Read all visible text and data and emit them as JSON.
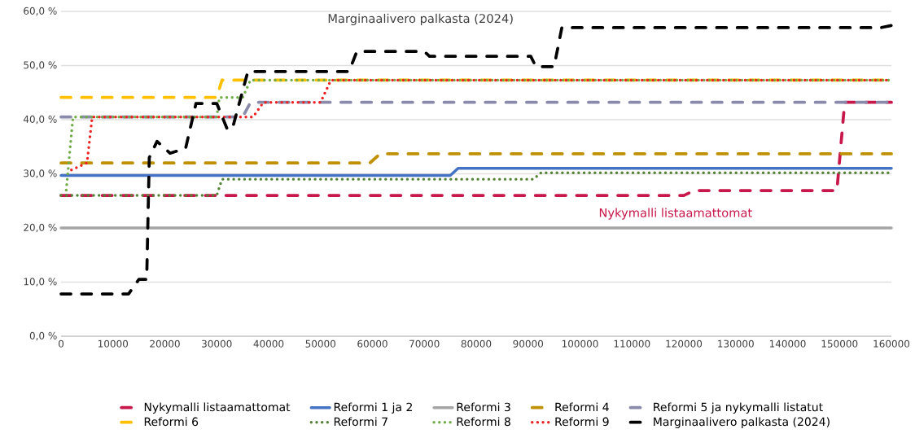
{
  "chart_data": {
    "type": "line",
    "xlim": [
      0,
      160000
    ],
    "ylim": [
      0,
      60
    ],
    "xticks": [
      0,
      10000,
      20000,
      30000,
      40000,
      50000,
      60000,
      70000,
      80000,
      90000,
      100000,
      110000,
      120000,
      130000,
      140000,
      150000,
      160000
    ],
    "yticks": [
      {
        "value": 0,
        "label": "0,0 %"
      },
      {
        "value": 10,
        "label": "10,0 %"
      },
      {
        "value": 20,
        "label": "20,0 %"
      },
      {
        "value": 30,
        "label": "30,0 %"
      },
      {
        "value": 40,
        "label": "40,0 %"
      },
      {
        "value": 50,
        "label": "50,0 %"
      },
      {
        "value": 60,
        "label": "60,0 %"
      }
    ],
    "grid": "y",
    "legend": "bottom",
    "annotations": [
      "Marginaalivero palkasta (2024)",
      "Nykymalli listaamattomat"
    ],
    "series": [
      {
        "name": "Nykymalli listaamattomat",
        "color": "#c8174a",
        "line_style": "dashed",
        "x": [
          0,
          120000,
          122000,
          149500,
          151000,
          160000
        ],
        "values": [
          26,
          26,
          26.9,
          26.9,
          43.2,
          43.2
        ]
      },
      {
        "name": "Reformi 1 ja 2",
        "color": "#4472c4",
        "line_style": "solid",
        "x": [
          0,
          75000,
          76500,
          160000
        ],
        "values": [
          29.7,
          29.7,
          31.0,
          31.0
        ]
      },
      {
        "name": "Reformi 3",
        "color": "#a5a5a5",
        "line_style": "solid",
        "x": [
          0,
          160000
        ],
        "values": [
          20,
          20
        ]
      },
      {
        "name": "Reformi 4",
        "color": "#bf9000",
        "line_style": "dashed",
        "x": [
          0,
          59500,
          61500,
          160000
        ],
        "values": [
          32,
          32,
          33.7,
          33.7
        ]
      },
      {
        "name": "Reformi 5 ja nykymalli listatut",
        "color": "#8a8aaa",
        "line_style": "dashed",
        "x": [
          0,
          35000,
          36500,
          160000
        ],
        "values": [
          40.5,
          40.5,
          43.2,
          43.2
        ]
      },
      {
        "name": "Reformi 6",
        "color": "#ffc000",
        "line_style": "dashed",
        "x": [
          0,
          30000,
          31000,
          160000
        ],
        "values": [
          44.1,
          44.1,
          47.3,
          47.3
        ]
      },
      {
        "name": "Reformi 7",
        "color": "#548235",
        "line_style": "dotted",
        "x": [
          0,
          30000,
          31000,
          91000,
          92500,
          160000
        ],
        "values": [
          26,
          26,
          29,
          29,
          30.2,
          30.2
        ]
      },
      {
        "name": "Reformi 8",
        "color": "#70ad47",
        "line_style": "dotted",
        "x": [
          1000,
          2300,
          30000,
          30500,
          35000,
          36500,
          160000
        ],
        "values": [
          27,
          40.5,
          40.5,
          44.1,
          44.1,
          47.3,
          47.3
        ]
      },
      {
        "name": "Reformi 9",
        "color": "#ee2222",
        "line_style": "dotted",
        "x": [
          2000,
          5000,
          6000,
          37000,
          39000,
          50000,
          52000,
          160000
        ],
        "values": [
          30.7,
          32,
          40.5,
          40.5,
          43.2,
          43.2,
          47.3,
          47.3
        ]
      },
      {
        "name": "Marginaalivero palkasta (2024)",
        "color": "#000000",
        "line_style": "dashed",
        "x": [
          0,
          13000,
          15000,
          16500,
          17000,
          18500,
          21000,
          24000,
          26000,
          30000,
          32000,
          33000,
          36000,
          55500,
          57000,
          70000,
          71000,
          90500,
          91500,
          95000,
          96500,
          158000,
          160000
        ],
        "values": [
          7.8,
          7.8,
          10.5,
          10.5,
          33,
          36,
          33.8,
          34.7,
          43,
          43,
          38.3,
          38.3,
          48.9,
          48.9,
          52.6,
          52.6,
          51.7,
          51.7,
          49.8,
          49.8,
          57.0,
          57.0,
          57.4
        ]
      }
    ]
  }
}
